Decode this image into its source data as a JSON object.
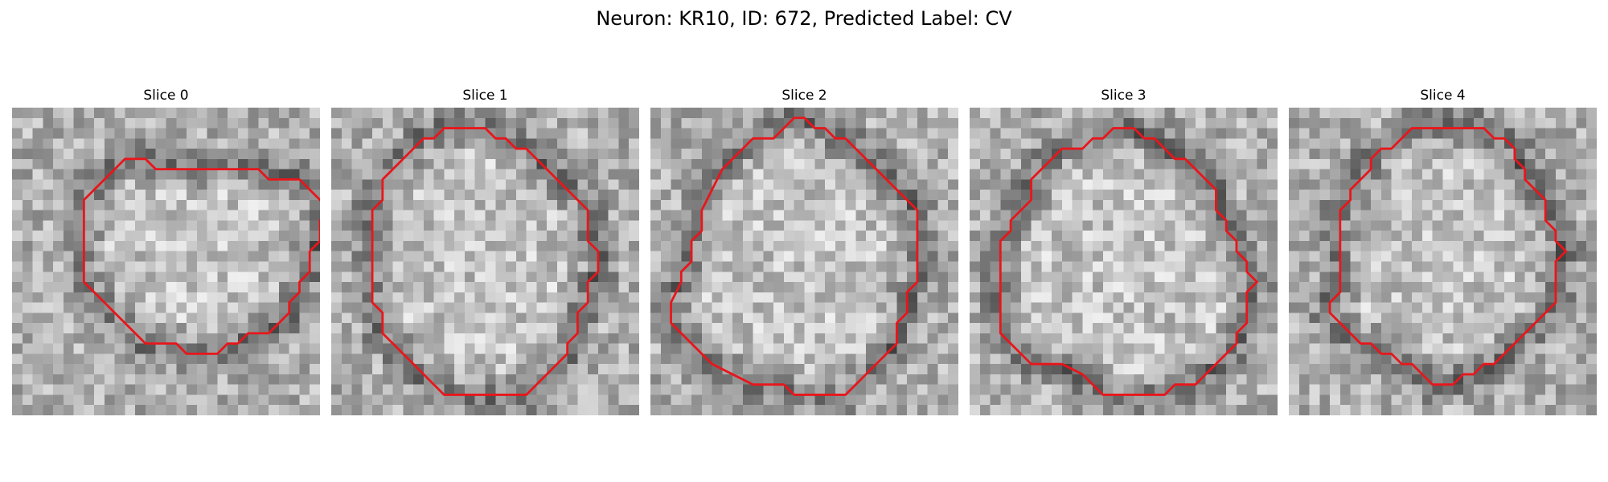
{
  "figure": {
    "title": "Neuron: KR10, ID: 672, Predicted Label: CV"
  },
  "panels": [
    {
      "title": "Slice 0",
      "outline_color": "#e8161b",
      "outline": [
        [
          15,
          6
        ],
        [
          24,
          6
        ],
        [
          25,
          7
        ],
        [
          28,
          7
        ],
        [
          29,
          8
        ],
        [
          30,
          9
        ],
        [
          31,
          10
        ],
        [
          30,
          11
        ],
        [
          30,
          13
        ],
        [
          29,
          14
        ],
        [
          29,
          16
        ],
        [
          28,
          17
        ],
        [
          28,
          18
        ],
        [
          27,
          19
        ],
        [
          27,
          20
        ],
        [
          26,
          21
        ],
        [
          25,
          22
        ],
        [
          23,
          22
        ],
        [
          22,
          23
        ],
        [
          21,
          23
        ],
        [
          20,
          24
        ],
        [
          17,
          24
        ],
        [
          16,
          23
        ],
        [
          13,
          23
        ],
        [
          12,
          22
        ],
        [
          11,
          21
        ],
        [
          10,
          20
        ],
        [
          9,
          19
        ],
        [
          8,
          18
        ],
        [
          7,
          17
        ],
        [
          7,
          12
        ],
        [
          7,
          9
        ],
        [
          8,
          8
        ],
        [
          9,
          7
        ],
        [
          10,
          6
        ],
        [
          11,
          5
        ],
        [
          13,
          5
        ],
        [
          14,
          6
        ]
      ]
    },
    {
      "title": "Slice 1",
      "outline_color": "#e8161b",
      "outline": [
        [
          13,
          2
        ],
        [
          15,
          2
        ],
        [
          16,
          3
        ],
        [
          17,
          3
        ],
        [
          18,
          4
        ],
        [
          19,
          4
        ],
        [
          20,
          5
        ],
        [
          21,
          6
        ],
        [
          22,
          7
        ],
        [
          23,
          8
        ],
        [
          24,
          9
        ],
        [
          25,
          10
        ],
        [
          25,
          13
        ],
        [
          26,
          14
        ],
        [
          26,
          16
        ],
        [
          25,
          17
        ],
        [
          25,
          19
        ],
        [
          24,
          20
        ],
        [
          24,
          22
        ],
        [
          23,
          23
        ],
        [
          23,
          24
        ],
        [
          22,
          25
        ],
        [
          21,
          26
        ],
        [
          20,
          27
        ],
        [
          19,
          28
        ],
        [
          17,
          28
        ],
        [
          14,
          28
        ],
        [
          11,
          28
        ],
        [
          10,
          27
        ],
        [
          9,
          26
        ],
        [
          8,
          25
        ],
        [
          7,
          24
        ],
        [
          6,
          23
        ],
        [
          5,
          22
        ],
        [
          5,
          20
        ],
        [
          4,
          19
        ],
        [
          4,
          15
        ],
        [
          4,
          10
        ],
        [
          5,
          9
        ],
        [
          5,
          7
        ],
        [
          6,
          6
        ],
        [
          7,
          5
        ],
        [
          8,
          4
        ],
        [
          9,
          3
        ],
        [
          10,
          3
        ],
        [
          11,
          2
        ]
      ]
    },
    {
      "title": "Slice 2",
      "outline_color": "#e8161b",
      "outline": [
        [
          13,
          2
        ],
        [
          14,
          1
        ],
        [
          15,
          1
        ],
        [
          16,
          2
        ],
        [
          17,
          2
        ],
        [
          18,
          3
        ],
        [
          19,
          3
        ],
        [
          20,
          4
        ],
        [
          21,
          5
        ],
        [
          22,
          6
        ],
        [
          23,
          7
        ],
        [
          24,
          8
        ],
        [
          25,
          9
        ],
        [
          26,
          10
        ],
        [
          26,
          14
        ],
        [
          26,
          17
        ],
        [
          25,
          18
        ],
        [
          25,
          20
        ],
        [
          24,
          21
        ],
        [
          24,
          23
        ],
        [
          23,
          24
        ],
        [
          22,
          25
        ],
        [
          21,
          26
        ],
        [
          20,
          27
        ],
        [
          19,
          28
        ],
        [
          17,
          28
        ],
        [
          14,
          28
        ],
        [
          13,
          27
        ],
        [
          12,
          27
        ],
        [
          10,
          27
        ],
        [
          8,
          26
        ],
        [
          6,
          25
        ],
        [
          5,
          24
        ],
        [
          4,
          23
        ],
        [
          3,
          22
        ],
        [
          2,
          21
        ],
        [
          2,
          19
        ],
        [
          3,
          17
        ],
        [
          3,
          16
        ],
        [
          4,
          15
        ],
        [
          4,
          13
        ],
        [
          5,
          12
        ],
        [
          5,
          10
        ],
        [
          6,
          8
        ],
        [
          7,
          6
        ],
        [
          8,
          5
        ],
        [
          9,
          4
        ],
        [
          10,
          3
        ],
        [
          12,
          3
        ]
      ]
    },
    {
      "title": "Slice 3",
      "outline_color": "#e8161b",
      "outline": [
        [
          14,
          2
        ],
        [
          16,
          2
        ],
        [
          17,
          3
        ],
        [
          18,
          3
        ],
        [
          19,
          4
        ],
        [
          20,
          5
        ],
        [
          21,
          5
        ],
        [
          22,
          6
        ],
        [
          23,
          7
        ],
        [
          24,
          8
        ],
        [
          24,
          10
        ],
        [
          25,
          11
        ],
        [
          25,
          12
        ],
        [
          26,
          13
        ],
        [
          26,
          14
        ],
        [
          27,
          15
        ],
        [
          27,
          16
        ],
        [
          28,
          17
        ],
        [
          27,
          18
        ],
        [
          27,
          21
        ],
        [
          26,
          22
        ],
        [
          26,
          23
        ],
        [
          25,
          24
        ],
        [
          24,
          25
        ],
        [
          23,
          26
        ],
        [
          22,
          27
        ],
        [
          20,
          27
        ],
        [
          19,
          28
        ],
        [
          17,
          28
        ],
        [
          13,
          28
        ],
        [
          12,
          27
        ],
        [
          11,
          26
        ],
        [
          9,
          25
        ],
        [
          6,
          25
        ],
        [
          5,
          24
        ],
        [
          4,
          23
        ],
        [
          3,
          22
        ],
        [
          3,
          19
        ],
        [
          3,
          13
        ],
        [
          4,
          12
        ],
        [
          4,
          11
        ],
        [
          5,
          10
        ],
        [
          6,
          9
        ],
        [
          6,
          7
        ],
        [
          7,
          6
        ],
        [
          8,
          5
        ],
        [
          9,
          4
        ],
        [
          11,
          4
        ],
        [
          12,
          3
        ],
        [
          13,
          3
        ]
      ]
    },
    {
      "title": "Slice 4",
      "outline_color": "#e8161b",
      "outline": [
        [
          12,
          2
        ],
        [
          19,
          2
        ],
        [
          20,
          3
        ],
        [
          21,
          3
        ],
        [
          22,
          4
        ],
        [
          22,
          5
        ],
        [
          23,
          6
        ],
        [
          23,
          7
        ],
        [
          24,
          8
        ],
        [
          25,
          9
        ],
        [
          25,
          11
        ],
        [
          26,
          12
        ],
        [
          26,
          13
        ],
        [
          27,
          14
        ],
        [
          26,
          15
        ],
        [
          26,
          19
        ],
        [
          25,
          20
        ],
        [
          24,
          21
        ],
        [
          23,
          22
        ],
        [
          22,
          23
        ],
        [
          21,
          24
        ],
        [
          20,
          25
        ],
        [
          19,
          25
        ],
        [
          18,
          26
        ],
        [
          17,
          26
        ],
        [
          16,
          27
        ],
        [
          14,
          27
        ],
        [
          13,
          26
        ],
        [
          12,
          25
        ],
        [
          11,
          25
        ],
        [
          10,
          24
        ],
        [
          9,
          24
        ],
        [
          8,
          23
        ],
        [
          7,
          23
        ],
        [
          6,
          22
        ],
        [
          5,
          21
        ],
        [
          4,
          20
        ],
        [
          4,
          19
        ],
        [
          5,
          18
        ],
        [
          5,
          12
        ],
        [
          5,
          10
        ],
        [
          6,
          9
        ],
        [
          6,
          8
        ],
        [
          7,
          7
        ],
        [
          8,
          6
        ],
        [
          8,
          5
        ],
        [
          9,
          4
        ],
        [
          10,
          4
        ],
        [
          11,
          3
        ]
      ]
    }
  ]
}
